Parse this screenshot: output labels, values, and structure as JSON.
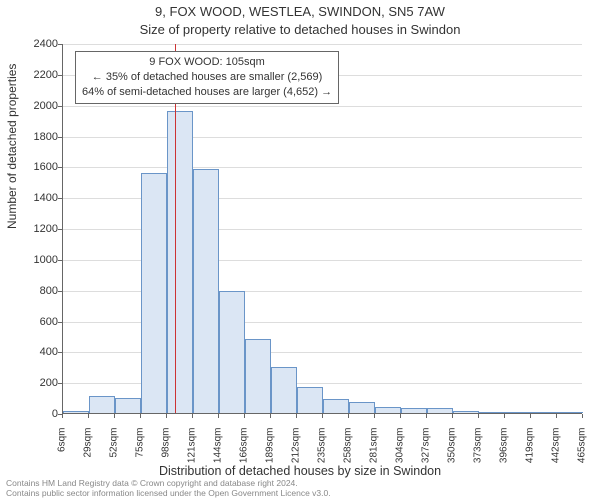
{
  "title_line1": "9, FOX WOOD, WESTLEA, SWINDON, SN5 7AW",
  "title_line2": "Size of property relative to detached houses in Swindon",
  "y_axis_title": "Number of detached properties",
  "x_axis_title": "Distribution of detached houses by size in Swindon",
  "footer_line1": "Contains HM Land Registry data © Crown copyright and database right 2024.",
  "footer_line2": "Contains public sector information licensed under the Open Government Licence v3.0.",
  "chart": {
    "type": "histogram",
    "ylim": [
      0,
      2400
    ],
    "ytick_step": 200,
    "yticks": [
      0,
      200,
      400,
      600,
      800,
      1000,
      1200,
      1400,
      1600,
      1800,
      2000,
      2200,
      2400
    ],
    "xticks": [
      "6sqm",
      "29sqm",
      "52sqm",
      "75sqm",
      "98sqm",
      "121sqm",
      "144sqm",
      "166sqm",
      "189sqm",
      "212sqm",
      "235sqm",
      "258sqm",
      "281sqm",
      "304sqm",
      "327sqm",
      "350sqm",
      "373sqm",
      "396sqm",
      "419sqm",
      "442sqm",
      "465sqm"
    ],
    "bars": [
      {
        "value": 10
      },
      {
        "value": 110
      },
      {
        "value": 100
      },
      {
        "value": 1560
      },
      {
        "value": 1960
      },
      {
        "value": 1580
      },
      {
        "value": 790
      },
      {
        "value": 480
      },
      {
        "value": 300
      },
      {
        "value": 170
      },
      {
        "value": 90
      },
      {
        "value": 70
      },
      {
        "value": 40
      },
      {
        "value": 30
      },
      {
        "value": 30
      },
      {
        "value": 10
      },
      {
        "value": 5
      },
      {
        "value": 5
      },
      {
        "value": 5
      },
      {
        "value": 5
      }
    ],
    "bar_fill": "#dbe6f4",
    "bar_stroke": "#6a95c8",
    "background": "#ffffff",
    "grid_color": "#dddddd",
    "axis_color": "#666666",
    "title_fontsize": 13,
    "label_fontsize": 12,
    "tick_fontsize": 11,
    "xtick_fontsize": 10,
    "marker": {
      "position_sqm": 105,
      "color": "#cc3333",
      "width": 1.5
    },
    "annotation": {
      "line1": "9 FOX WOOD: 105sqm",
      "line2": "← 35% of detached houses are smaller (2,569)",
      "line3": "64% of semi-detached houses are larger (4,652) →",
      "border_color": "#666666",
      "bg": "#ffffff",
      "fontsize": 11
    }
  }
}
